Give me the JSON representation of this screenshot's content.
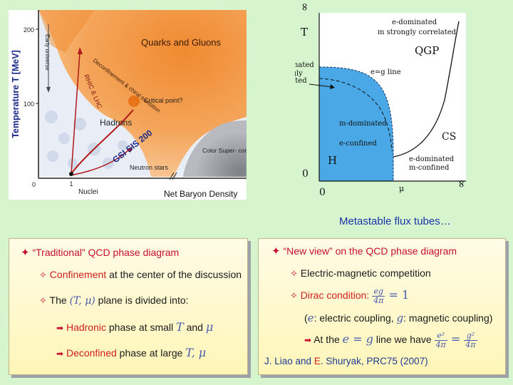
{
  "left_figure": {
    "y_axis_label": "Temperature T [MeV]",
    "y_ticks": [
      "200",
      "100",
      "0"
    ],
    "x_ticks": [
      "1"
    ],
    "x_label_nuclei": "Nuclei",
    "x_axis_label": "Net Baryon Density",
    "region_qg": "Quarks and Gluons",
    "region_hadrons": "Hadrons",
    "region_color_sc": "Color Super-\nconductor?",
    "early_universe": "Early universe",
    "rhic_lhc": "RHIC & LHC",
    "deconfinement": "Deconfinement &\nchiral transition",
    "critical_point": "Critical point?",
    "gsi": "GSI SIS 200",
    "neutron_stars": "Neutron stars"
  },
  "right_figure": {
    "t_axis_label": "T",
    "infinity_top": "∞",
    "infinity_right": "∞",
    "zero_t": "0",
    "zero_mu": "0",
    "mu_label": "μ",
    "e_dominated_top": "e-dominated",
    "m_strongly_correlated": "m strongly correlated",
    "qgp": "QGP",
    "m_dominated_left": "m-dominated",
    "e_strongly": "e strongly",
    "correlated": "correlated",
    "eg_line": "e=g line",
    "m_dominated_inner": "m-dominated",
    "e_confined": "e-confined",
    "h_label": "H",
    "cs_label": "CS",
    "e_dominated_bottom": "e-dominated",
    "m_confined": "m-confined"
  },
  "caption": "Metastable flux tubes…",
  "box_left": {
    "head": "“Traditional” QCD phase diagram",
    "l1_red": "Confinement",
    "l1_rest": " at the center of the discussion",
    "l2_the": "The ",
    "l2_math": "(T, μ)",
    "l2_rest": " plane is divided into:",
    "l3_red": "Hadronic",
    "l3_rest": " phase at small ",
    "l3_T": "T",
    "l3_and": " and ",
    "l3_mu": "μ",
    "l4_red": "Deconfined",
    "l4_rest": " phase at large ",
    "l4_math": "T, μ"
  },
  "box_right": {
    "head": "“New view” on the QCD phase diagram",
    "l1": "Electric-magnetic competition",
    "l2_red": "Dirac condition: ",
    "l2_num": "eg",
    "l2_den": "4π",
    "l2_eq": " = 1",
    "l3_open": "(",
    "l3_e": "e",
    "l3_mid": ": electric coupling, ",
    "l3_g": "g",
    "l3_end": ": magnetic coupling)",
    "l4_pre": "At the ",
    "l4_eq": "e = g",
    "l4_post": " line we have ",
    "l4_f1_num": "e²",
    "l4_f1_den": "4π",
    "l4_eqsign": " = ",
    "l4_f2_num": "g²",
    "l4_f2_den": "4π",
    "ref_pre": "J. Liao and ",
    "ref_e": "E",
    "ref_post": ". Shuryak, PRC75 (2007)"
  }
}
